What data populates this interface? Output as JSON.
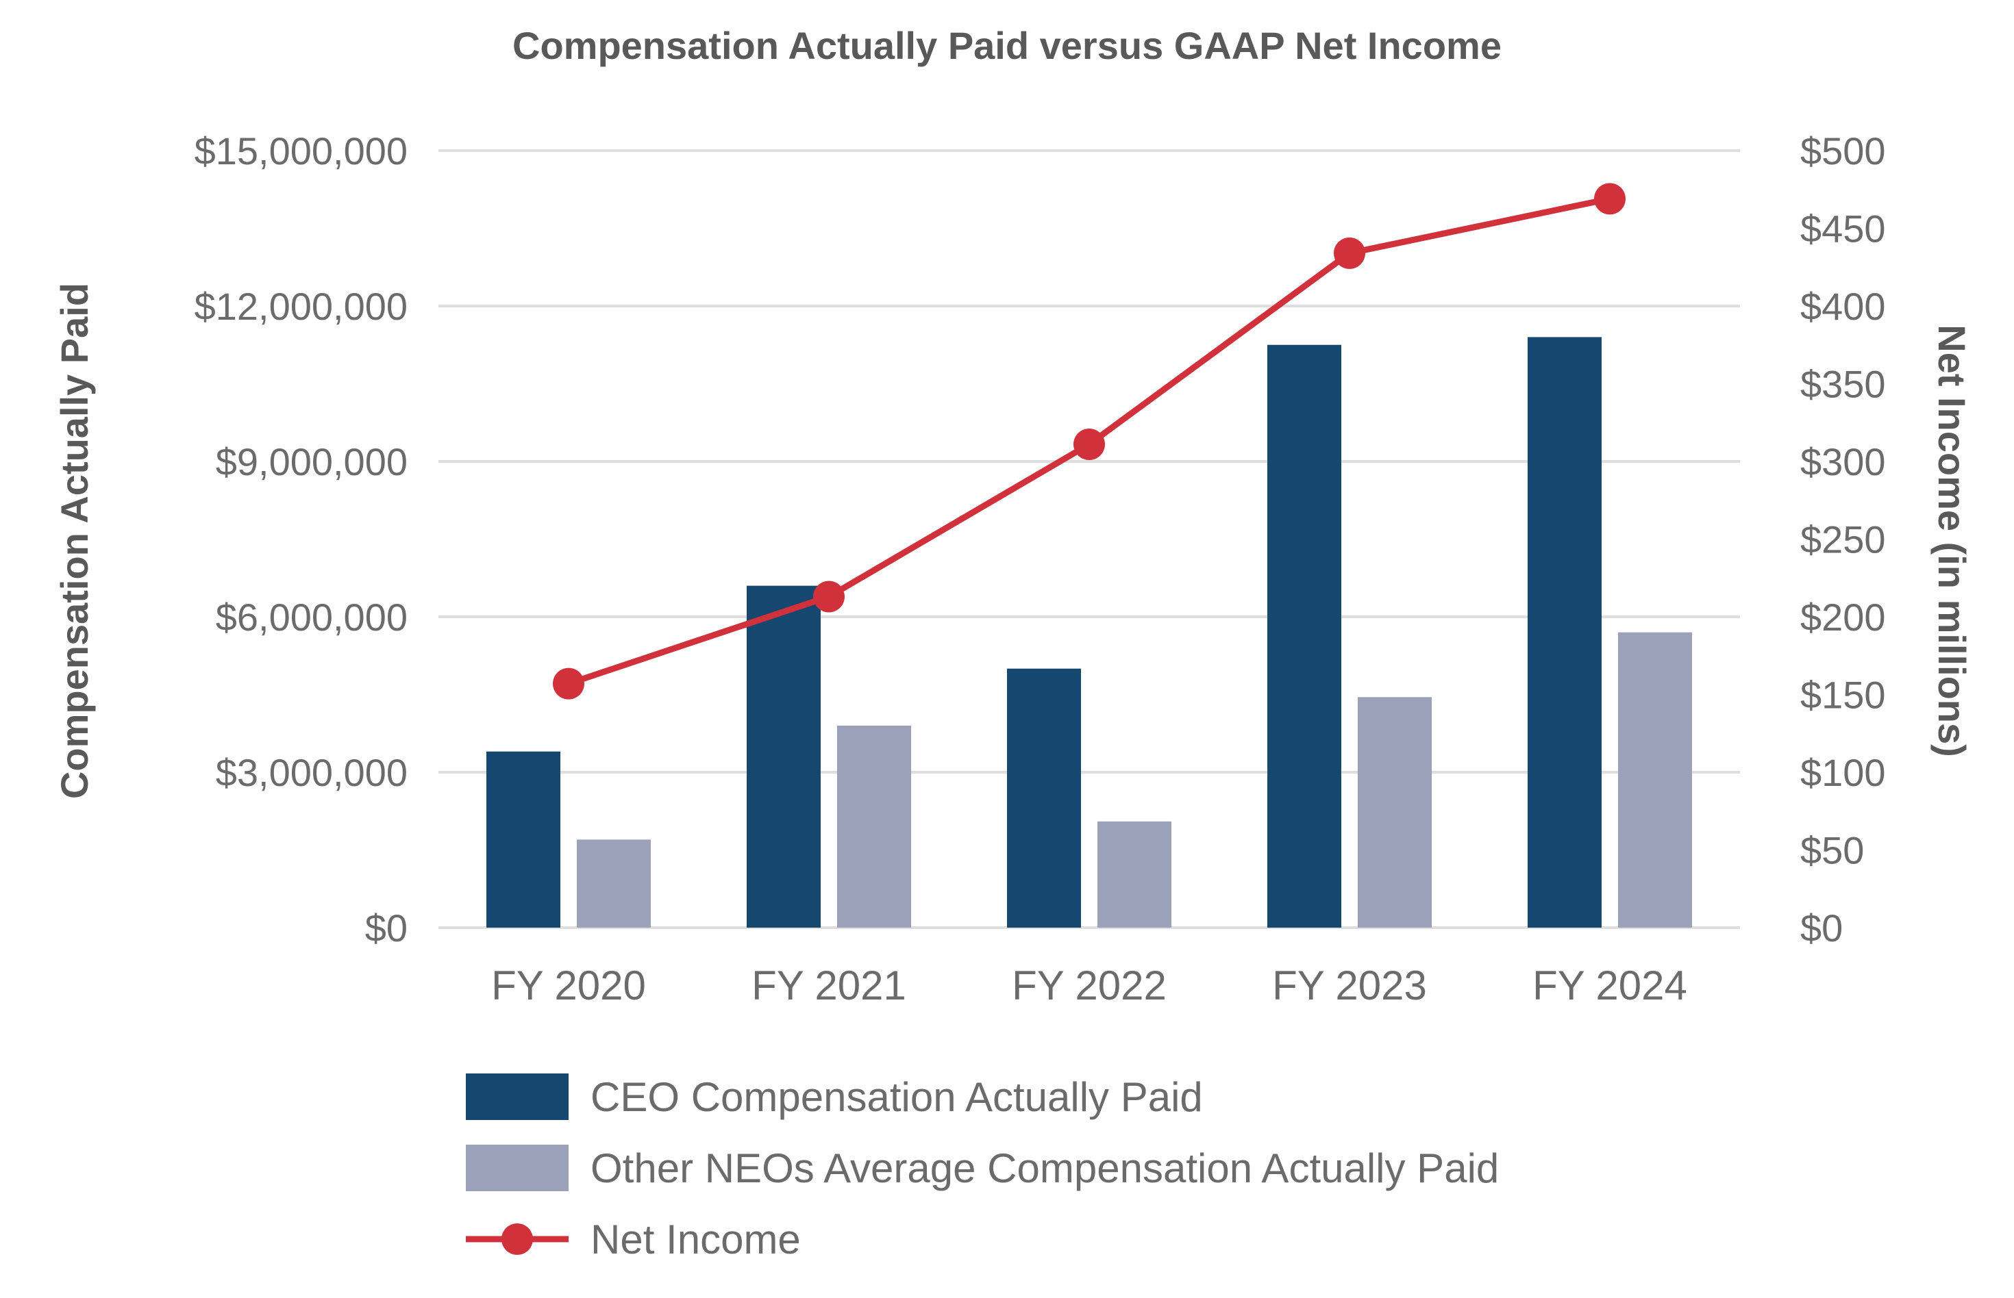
{
  "chart_data": {
    "type": "bar",
    "title": "Compensation Actually Paid versus GAAP Net Income",
    "categories": [
      "FY 2020",
      "FY 2021",
      "FY 2022",
      "FY 2023",
      "FY 2024"
    ],
    "ylabel": "Compensation Actually Paid",
    "y2label": "Net Income (in millions)",
    "ylim": [
      0,
      15000000
    ],
    "y2lim": [
      0,
      500
    ],
    "y_ticks": [
      "$0",
      "$3,000,000",
      "$6,000,000",
      "$9,000,000",
      "$12,000,000",
      "$15,000,000"
    ],
    "y_tick_values": [
      0,
      3000000,
      6000000,
      9000000,
      12000000,
      15000000
    ],
    "y2_ticks": [
      "$0",
      "$50",
      "$100",
      "$150",
      "$200",
      "$250",
      "$300",
      "$350",
      "$400",
      "$450",
      "$500"
    ],
    "y2_tick_values": [
      0,
      50,
      100,
      150,
      200,
      250,
      300,
      350,
      400,
      450,
      500
    ],
    "grid": true,
    "legend_position": "bottom",
    "series": [
      {
        "name": "CEO Compensation Actually Paid",
        "type": "bar",
        "axis": "left",
        "color": "#15476f",
        "values": [
          3400000,
          6600000,
          5000000,
          11250000,
          11400000
        ]
      },
      {
        "name": "Other NEOs Average Compensation Actually Paid",
        "type": "bar",
        "axis": "left",
        "color": "#9ba1b8",
        "values": [
          1700000,
          3900000,
          2050000,
          4450000,
          5700000
        ]
      },
      {
        "name": "Net Income",
        "type": "line",
        "axis": "right",
        "color": "#d1313b",
        "values": [
          157,
          213,
          311,
          434,
          469
        ]
      }
    ]
  }
}
